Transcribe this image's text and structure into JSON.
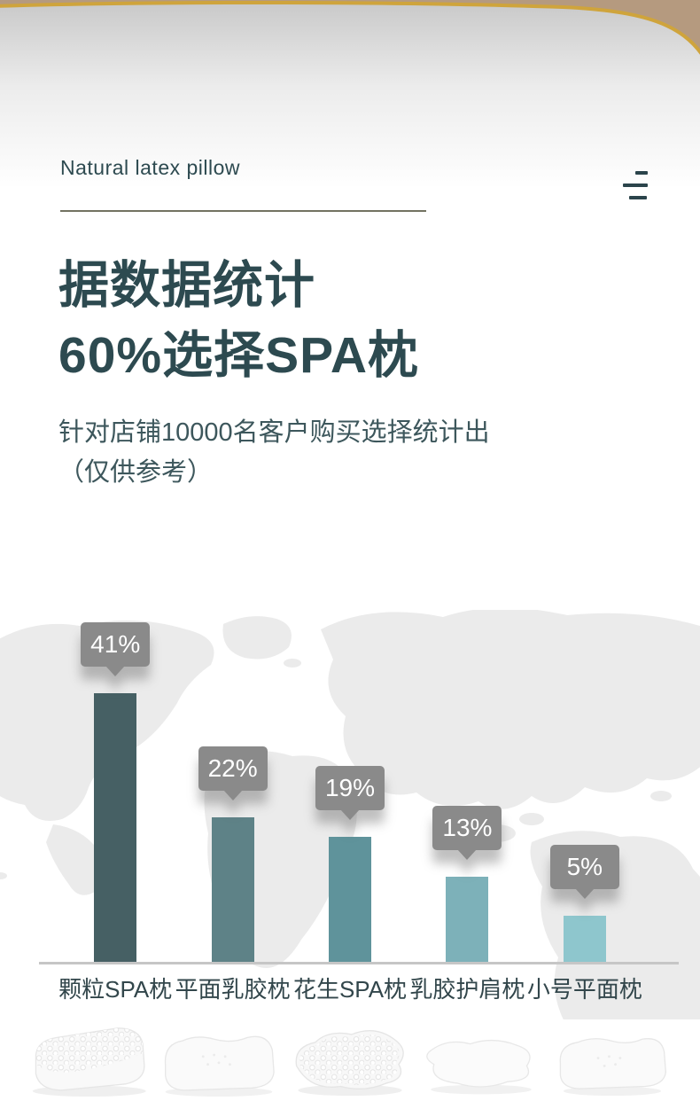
{
  "theme": {
    "background_tan": "#b59a7f",
    "gold_border": "#cfa43c",
    "heading_teal": "#2d4a50",
    "subtitle_teal": "#3d575c",
    "callout_gray": "#8a8a8a",
    "axis_gray": "#c6c6c6",
    "map_gray": "#ebebeb",
    "category_label_color": "#32464b"
  },
  "header": {
    "brand": "Natural latex pillow",
    "menu_icon": "three-lines-menu-icon"
  },
  "headline": {
    "line1": "据数据统计",
    "line2": "60%选择SPA枕"
  },
  "subtitle": {
    "line1": "针对店铺10000名客户购买选择统计出",
    "line2": "（仅供参考）"
  },
  "chart_data": {
    "type": "bar",
    "title": "据数据统计 60%选择SPA枕",
    "subtitle": "针对店铺10000名客户购买选择统计出（仅供参考）",
    "categories": [
      "颗粒SPA枕",
      "平面乳胶枕",
      "花生SPA枕",
      "乳胶护肩枕",
      "小号平面枕"
    ],
    "values": [
      41,
      22,
      19,
      13,
      5
    ],
    "value_labels": [
      "41%",
      "22%",
      "19%",
      "13%",
      "5%"
    ],
    "unit": "%",
    "bar_colors": [
      "#466064",
      "#5e8287",
      "#5f939b",
      "#7db1b9",
      "#8ec6cd"
    ],
    "xlabel": "",
    "ylabel": "",
    "ylim": [
      0,
      45
    ],
    "grid": false,
    "legend_position": "none",
    "background": "world-map-silhouette",
    "callout_style": "gray-speech-bubble-above-bar"
  },
  "pillow_images": [
    {
      "name": "granular-spa-pillow-image",
      "category": "颗粒SPA枕"
    },
    {
      "name": "flat-latex-pillow-image",
      "category": "平面乳胶枕"
    },
    {
      "name": "peanut-spa-pillow-image",
      "category": "花生SPA枕"
    },
    {
      "name": "latex-shoulder-pillow-image",
      "category": "乳胶护肩枕"
    },
    {
      "name": "small-flat-pillow-image",
      "category": "小号平面枕"
    }
  ]
}
